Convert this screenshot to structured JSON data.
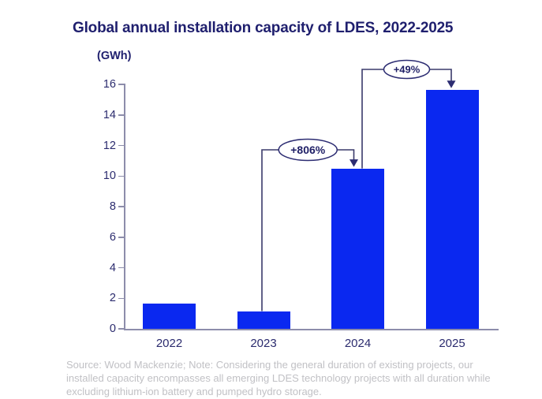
{
  "chart_data": {
    "type": "bar",
    "title": "Global annual installation capacity of LDES, 2022-2025",
    "unit_label": "(GWh)",
    "categories": [
      "2022",
      "2023",
      "2024",
      "2025"
    ],
    "values": [
      1.65,
      1.16,
      10.5,
      15.65
    ],
    "xlabel": "",
    "ylabel": "(GWh)",
    "ylim": [
      0,
      16
    ],
    "y_ticks": [
      0,
      2,
      4,
      6,
      8,
      10,
      12,
      14,
      16
    ],
    "grid": false,
    "legend": false,
    "annotations": [
      {
        "label": "+806%",
        "from": "2023",
        "to": "2024"
      },
      {
        "label": "+49%",
        "from": "2024",
        "to": "2025"
      }
    ]
  },
  "footer": {
    "lines": [
      "Source: Wood Mackenzie; Note: Considering the general duration of existing projects, our",
      "installed capacity encompasses all emerging LDES technology projects with all duration while",
      "excluding lithium-ion battery and pumped hydro storage."
    ]
  },
  "colors": {
    "background": "#ffffff",
    "bar": "#0a28f0",
    "title": "#1f1f6e",
    "axis_text": "#2b2b6e",
    "axis_line": "#8d8dab",
    "annotation_line": "#3a3a6b",
    "annotation_stroke": "#2c2c72",
    "annotation_text": "#1f1f66",
    "footer_text": "#c1c1c5"
  }
}
